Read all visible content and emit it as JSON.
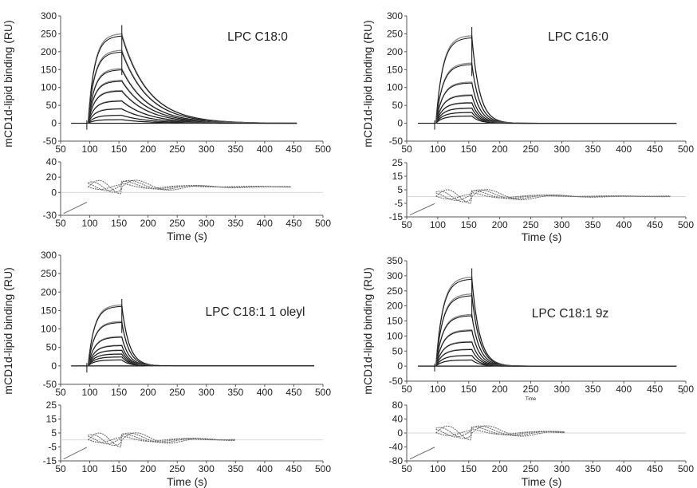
{
  "colors": {
    "fit": "#111111",
    "data": "#8a8a8a",
    "residual": "#6e6e6e",
    "zero_line": "#cccccc",
    "axis": "#555555"
  },
  "common": {
    "ylabel": "mCD1d-lipid binding (RU)",
    "xlabel": "Time (s)",
    "x_ticks": [
      "50",
      "100",
      "150",
      "200",
      "250",
      "300",
      "350",
      "400",
      "450",
      "500"
    ]
  },
  "chart_data": [
    {
      "type": "line",
      "title": "LPC C18:0",
      "ylabel": "mCD1d-lipid binding (RU)",
      "xlabel": "Time (s)",
      "xlim": [
        50,
        500
      ],
      "ylim": [
        -50,
        300
      ],
      "y_ticks": [
        "300",
        "250",
        "200",
        "150",
        "100",
        "50",
        "0",
        "-50"
      ],
      "x_ticks": [
        "50",
        "100",
        "150",
        "200",
        "250",
        "300",
        "350",
        "400",
        "450",
        "500"
      ],
      "injection_start": 97,
      "injection_end": 155,
      "x_end": 455,
      "dissociation_speed": "slow",
      "plateaus": [
        245,
        200,
        150,
        118,
        90,
        62,
        40,
        22,
        10
      ],
      "residuals": {
        "xlim": [
          50,
          500
        ],
        "ylim": [
          -30,
          40
        ],
        "y_ticks": [
          "40",
          "20",
          "0",
          "-30"
        ],
        "x_ticks": [
          "50",
          "100",
          "150",
          "200",
          "250",
          "300",
          "350",
          "400",
          "450",
          "500"
        ],
        "x_end": 445
      }
    },
    {
      "type": "line",
      "title": "LPC C16:0",
      "ylabel": "mCD1d-lipid binding (RU)",
      "xlabel": "Time (s)",
      "xlim": [
        50,
        500
      ],
      "ylim": [
        -50,
        300
      ],
      "y_ticks": [
        "300",
        "250",
        "200",
        "150",
        "100",
        "50",
        "0",
        "-50"
      ],
      "x_ticks": [
        "50",
        "100",
        "150",
        "200",
        "250",
        "300",
        "350",
        "400",
        "450",
        "500"
      ],
      "injection_start": 97,
      "injection_end": 155,
      "x_end": 485,
      "dissociation_speed": "fast",
      "plateaus": [
        240,
        165,
        113,
        78,
        57,
        42,
        30,
        20
      ],
      "residuals": {
        "xlim": [
          50,
          500
        ],
        "ylim": [
          -15,
          25
        ],
        "y_ticks": [
          "25",
          "15",
          "5",
          "-5",
          "-15"
        ],
        "x_ticks": [
          "50",
          "100",
          "150",
          "200",
          "250",
          "300",
          "350",
          "400",
          "450",
          "500"
        ],
        "x_end": 475
      }
    },
    {
      "type": "line",
      "title": "LPC C18:1 1 oleyl",
      "ylabel": "mCD1d-lipid binding (RU)",
      "xlabel": "Time (s)",
      "xlim": [
        50,
        500
      ],
      "ylim": [
        -50,
        300
      ],
      "y_ticks": [
        "300",
        "250",
        "200",
        "150",
        "100",
        "50",
        "0",
        "-50"
      ],
      "x_ticks": [
        "50",
        "100",
        "150",
        "200",
        "250",
        "300",
        "350",
        "400",
        "450",
        "500"
      ],
      "injection_start": 97,
      "injection_end": 155,
      "x_end": 485,
      "dissociation_speed": "fast",
      "plateaus": [
        162,
        118,
        78,
        55,
        42,
        32,
        24,
        16
      ],
      "residuals": {
        "xlim": [
          50,
          500
        ],
        "ylim": [
          -15,
          25
        ],
        "y_ticks": [
          "25",
          "15",
          "5",
          "-5",
          "-15"
        ],
        "x_ticks": [
          "50",
          "100",
          "150",
          "200",
          "250",
          "300",
          "350",
          "400",
          "450",
          "500"
        ],
        "x_end": 350
      }
    },
    {
      "type": "line",
      "title": "LPC C18:1 9z",
      "ylabel": "mCD1d-lipid binding (RU)",
      "xlabel": "Time (s)",
      "xlim": [
        50,
        500
      ],
      "ylim": [
        -50,
        350
      ],
      "y_ticks": [
        "350",
        "300",
        "250",
        "200",
        "150",
        "100",
        "50",
        "0",
        "-50"
      ],
      "x_ticks": [
        "50",
        "100",
        "150",
        "200",
        "250",
        "300",
        "350",
        "400",
        "450",
        "500"
      ],
      "x_small_label": "Time",
      "x_small_mark": "s",
      "injection_start": 97,
      "injection_end": 155,
      "x_end": 485,
      "dissociation_speed": "fast",
      "plateaus": [
        290,
        235,
        168,
        118,
        80,
        55,
        35,
        20
      ],
      "residuals": {
        "xlim": [
          50,
          500
        ],
        "ylim": [
          -80,
          80
        ],
        "y_ticks": [
          "80",
          "40",
          "0",
          "-40",
          "-80"
        ],
        "x_ticks": [
          "50",
          "100",
          "150",
          "200",
          "250",
          "300",
          "350",
          "400",
          "450",
          "500"
        ],
        "x_end": 305
      }
    }
  ]
}
